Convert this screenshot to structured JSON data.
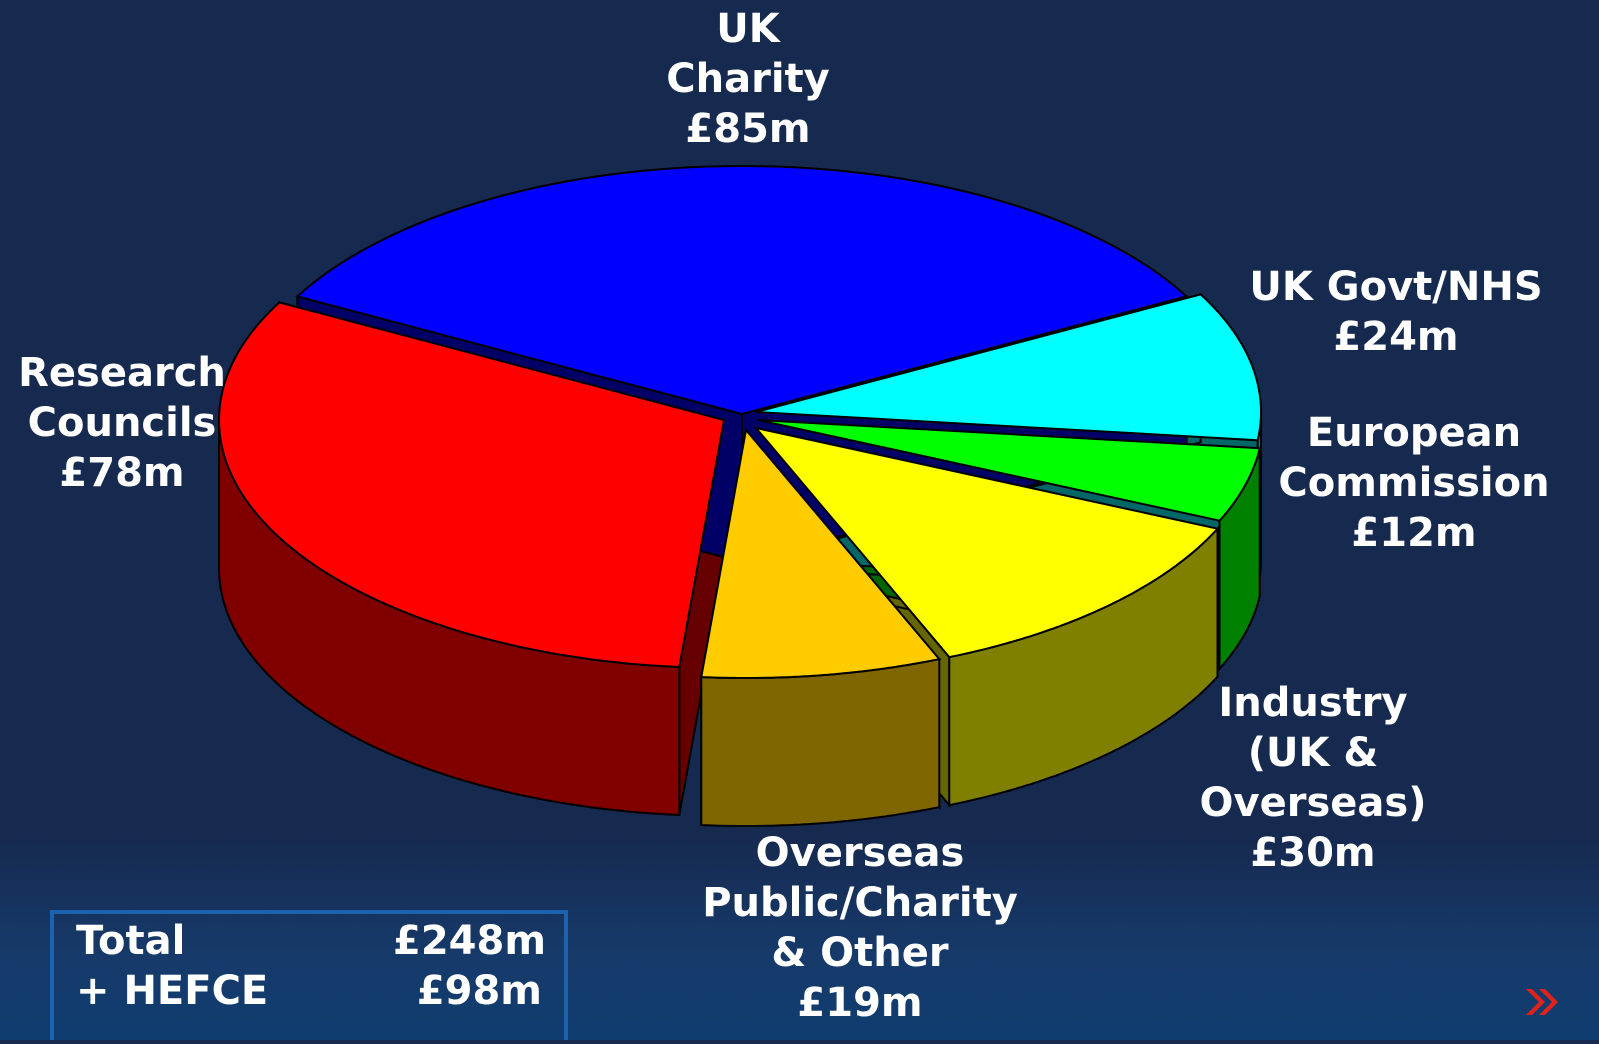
{
  "chart_data": {
    "type": "pie",
    "style": "3d-exploded",
    "unit": "£m",
    "slices": [
      {
        "name": "UK Charity",
        "label_lines": [
          "UK",
          "Charity",
          "£85m"
        ],
        "value": 85,
        "color": "#0000ff"
      },
      {
        "name": "UK Govt/NHS",
        "label_lines": [
          "UK Govt/NHS",
          "£24m"
        ],
        "value": 24,
        "color": "#00ffff"
      },
      {
        "name": "European Commission",
        "label_lines": [
          "European",
          "Commission",
          "£12m"
        ],
        "value": 12,
        "color": "#00ff00"
      },
      {
        "name": "Industry (UK & Overseas)",
        "label_lines": [
          "Industry",
          "(UK &",
          "Overseas)",
          "£30m"
        ],
        "value": 30,
        "color": "#ffff00"
      },
      {
        "name": "Overseas Public/Charity & Other",
        "label_lines": [
          "Overseas",
          "Public/Charity",
          "& Other",
          "£19m"
        ],
        "value": 19,
        "color": "#ffcc00"
      },
      {
        "name": "Research Councils",
        "label_lines": [
          "Research",
          "Councils",
          "£78m"
        ],
        "value": 78,
        "color": "#ff0000"
      }
    ]
  },
  "totals": {
    "total_label": "Total",
    "total_value": "£248m",
    "hefce_label": "+ HEFCE",
    "hefce_value": "£98m"
  },
  "colors": {
    "background": "#16294f",
    "box_border": "#1b62b0",
    "nav_arrow": "#e0221a"
  },
  "icons": {
    "next": "double-chevron-right-icon"
  }
}
